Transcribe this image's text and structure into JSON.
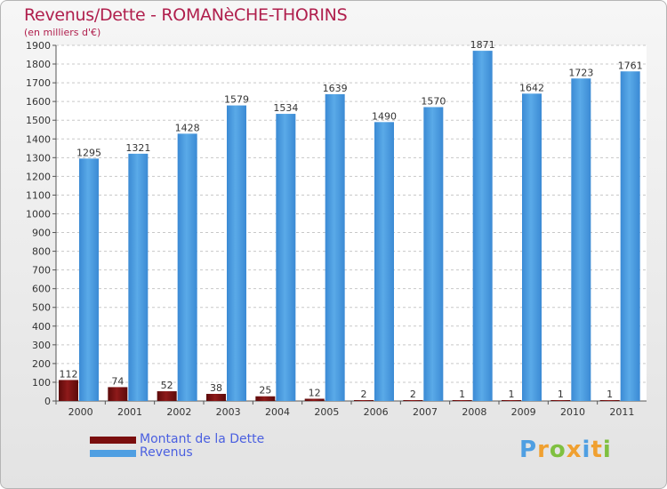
{
  "chart_data": {
    "type": "bar",
    "title": "Revenus/Dette - ROMANèCHE-THORINS",
    "subtitle": "(en milliers d'€)",
    "categories": [
      "2000",
      "2001",
      "2002",
      "2003",
      "2004",
      "2005",
      "2006",
      "2007",
      "2008",
      "2009",
      "2010",
      "2011"
    ],
    "series": [
      {
        "name": "Montant de la Dette",
        "color": "#7a0e0e",
        "values": [
          112,
          74,
          52,
          38,
          25,
          12,
          2,
          2,
          1,
          1,
          1,
          1
        ]
      },
      {
        "name": "Revenus",
        "color": "#4f9fe2",
        "values": [
          1295,
          1321,
          1428,
          1579,
          1534,
          1639,
          1490,
          1570,
          1871,
          1642,
          1723,
          1761
        ]
      }
    ],
    "ylim": [
      0,
      1900
    ],
    "yticks": [
      0,
      100,
      200,
      300,
      400,
      500,
      600,
      700,
      800,
      900,
      1000,
      1100,
      1200,
      1300,
      1400,
      1500,
      1600,
      1700,
      1800,
      1900
    ],
    "grid": true,
    "legend_position": "bottom-left"
  },
  "logo": {
    "letters": [
      "P",
      "r",
      "o",
      "x",
      "i",
      "t",
      "i"
    ],
    "colors": [
      "#4f9fe2",
      "#f0a030",
      "#7fc040",
      "#f0a030",
      "#4f9fe2",
      "#f0a030",
      "#7fc040"
    ]
  }
}
